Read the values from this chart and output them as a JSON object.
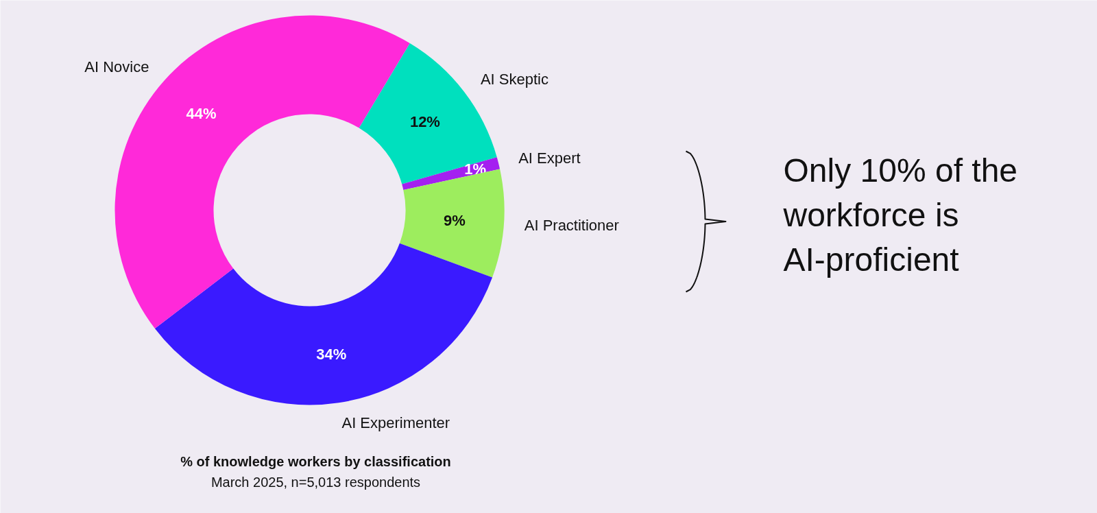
{
  "chart_data": {
    "type": "donut",
    "title": "% of knowledge workers by classification",
    "subtitle": "March 2025, n=5,013 respondents",
    "categories": [
      "AI Skeptic",
      "AI Expert",
      "AI Practitioner",
      "AI Experimenter",
      "AI Novice"
    ],
    "values": [
      12,
      1,
      9,
      34,
      44
    ],
    "colors": [
      "#00e0be",
      "#a41ff0",
      "#9ded5e",
      "#3a1aff",
      "#ff29d9"
    ],
    "value_labels": [
      "12%",
      "1%",
      "9%",
      "34%",
      "44%"
    ],
    "annotations": [
      "Only 10% of the workforce is AI-proficient"
    ]
  }
}
